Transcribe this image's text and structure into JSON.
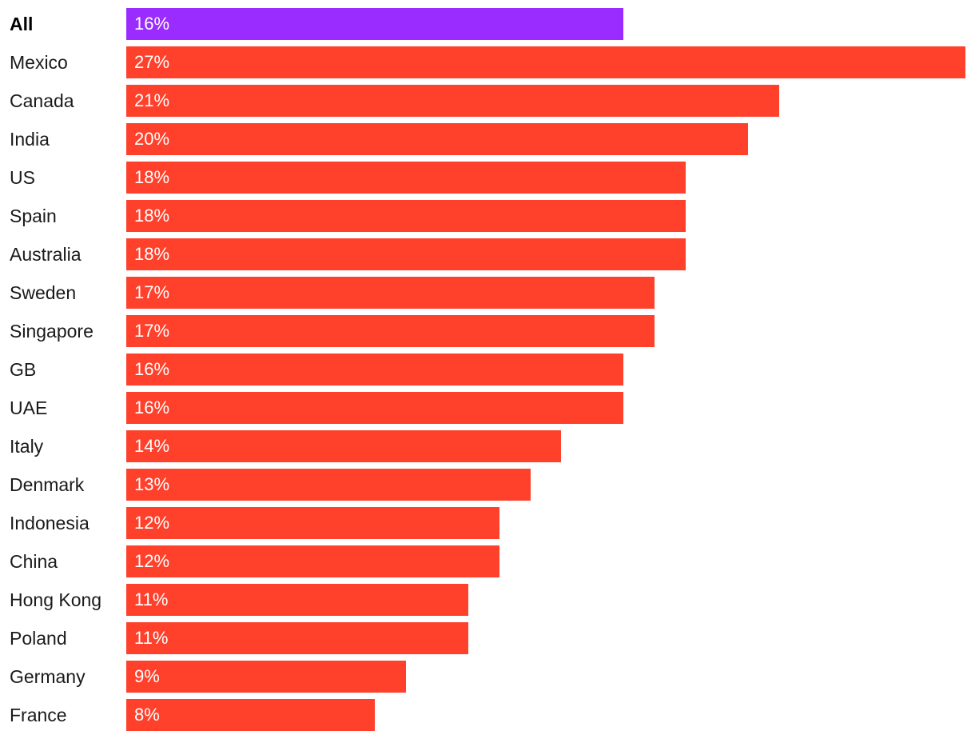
{
  "chart_data": {
    "type": "bar",
    "orientation": "horizontal",
    "categories": [
      "All",
      "Mexico",
      "Canada",
      "India",
      "US",
      "Spain",
      "Australia",
      "Sweden",
      "Singapore",
      "GB",
      "UAE",
      "Italy",
      "Denmark",
      "Indonesia",
      "China",
      "Hong Kong",
      "Poland",
      "Germany",
      "France"
    ],
    "values": [
      16,
      27,
      21,
      20,
      18,
      18,
      18,
      17,
      17,
      16,
      16,
      14,
      13,
      12,
      12,
      11,
      11,
      9,
      8
    ],
    "value_labels": [
      "16%",
      "27%",
      "21%",
      "20%",
      "18%",
      "18%",
      "18%",
      "17%",
      "17%",
      "16%",
      "16%",
      "14%",
      "13%",
      "12%",
      "12%",
      "11%",
      "11%",
      "9%",
      "8%"
    ],
    "unit": "%",
    "xlim": [
      0,
      27
    ],
    "grid": false,
    "highlight_category": "All",
    "colors": {
      "highlight": "#9b2cff",
      "default": "#ff412c",
      "bar_text": "#ffffff"
    }
  }
}
